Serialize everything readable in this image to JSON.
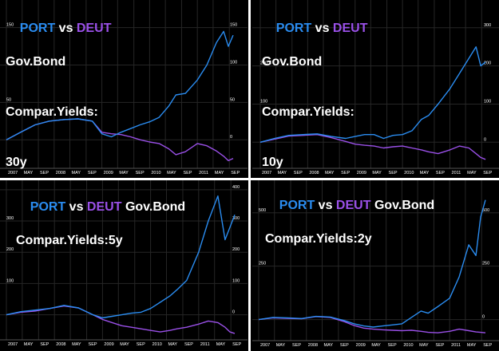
{
  "colors": {
    "background": "#000000",
    "port": "#2a8cf0",
    "deut": "#9a50e8",
    "grid": "#262626",
    "text": "#ffffff"
  },
  "chart_data": [
    {
      "type": "line",
      "title": {
        "port": "PORT",
        "vs": " vs ",
        "deut": "DEUT",
        "lines": [
          "Gov.Bond",
          "Compar.Yields:",
          "30y"
        ]
      },
      "xlabels": [
        "2007",
        "MAY",
        "SEP",
        "2008",
        "MAY",
        "SEP",
        "2009",
        "MAY",
        "SEP",
        "2010",
        "MAY",
        "SEP",
        "2011",
        "MAY",
        "SEP"
      ],
      "right_axis_labels": [
        "150",
        "100",
        "50",
        "0"
      ],
      "left_axis_labels": [
        "150",
        "50"
      ],
      "series": [
        {
          "color": "port",
          "x": [
            2007.0,
            2007.3,
            2007.6,
            2007.9,
            2008.2,
            2008.5,
            2008.8,
            2009.0,
            2009.2,
            2009.4,
            2009.6,
            2009.8,
            2010.0,
            2010.2,
            2010.4,
            2010.55,
            2010.75,
            2011.0,
            2011.2,
            2011.4,
            2011.55,
            2011.65,
            2011.75
          ],
          "y": [
            0,
            10,
            20,
            25,
            27,
            28,
            25,
            8,
            4,
            10,
            15,
            20,
            24,
            30,
            45,
            60,
            62,
            80,
            100,
            130,
            145,
            125,
            140
          ]
        },
        {
          "color": "deut",
          "x": [
            2007.0,
            2007.3,
            2007.6,
            2007.9,
            2008.2,
            2008.5,
            2008.8,
            2009.0,
            2009.2,
            2009.4,
            2009.6,
            2009.8,
            2010.0,
            2010.2,
            2010.4,
            2010.55,
            2010.75,
            2011.0,
            2011.2,
            2011.4,
            2011.55,
            2011.65,
            2011.75
          ],
          "y": [
            0,
            10,
            20,
            25,
            27,
            28,
            25,
            10,
            8,
            7,
            4,
            0,
            -3,
            -5,
            -12,
            -20,
            -16,
            -5,
            -8,
            -15,
            -22,
            -28,
            -25
          ]
        }
      ]
    },
    {
      "type": "line",
      "title": {
        "port": "PORT",
        "vs": " vs ",
        "deut": "DEUT",
        "lines": [
          "Gov.Bond",
          "Compar.Yields:",
          "10y"
        ]
      },
      "xlabels": [
        "2007",
        "MAY",
        "SEP",
        "2008",
        "MAY",
        "SEP",
        "2009",
        "MAY",
        "SEP",
        "2010",
        "MAY",
        "SEP",
        "2011",
        "MAY",
        "SEP"
      ],
      "right_axis_labels": [
        "300",
        "200",
        "100",
        "0"
      ],
      "left_axis_labels": [
        "200",
        "100"
      ],
      "series": [
        {
          "color": "port",
          "x": [
            2007.0,
            2007.3,
            2007.6,
            2007.9,
            2008.2,
            2008.5,
            2008.8,
            2009.0,
            2009.2,
            2009.4,
            2009.6,
            2009.8,
            2010.0,
            2010.2,
            2010.4,
            2010.55,
            2010.75,
            2011.0,
            2011.2,
            2011.4,
            2011.55,
            2011.65,
            2011.75
          ],
          "y": [
            0,
            10,
            18,
            20,
            22,
            15,
            10,
            15,
            20,
            20,
            10,
            18,
            20,
            30,
            60,
            70,
            100,
            140,
            180,
            220,
            250,
            200,
            210
          ]
        },
        {
          "color": "deut",
          "x": [
            2007.0,
            2007.3,
            2007.6,
            2007.9,
            2008.2,
            2008.5,
            2008.8,
            2009.0,
            2009.2,
            2009.4,
            2009.6,
            2009.8,
            2010.0,
            2010.2,
            2010.4,
            2010.55,
            2010.75,
            2011.0,
            2011.2,
            2011.4,
            2011.55,
            2011.65,
            2011.75
          ],
          "y": [
            0,
            8,
            16,
            18,
            20,
            12,
            2,
            -5,
            -8,
            -10,
            -15,
            -12,
            -10,
            -15,
            -20,
            -25,
            -30,
            -20,
            -10,
            -15,
            -30,
            -40,
            -45
          ]
        }
      ]
    },
    {
      "type": "line",
      "title": {
        "port": "PORT",
        "vs": " vs ",
        "deut": "DEUT",
        "lines": [
          "Gov.Bond",
          "Compar.Yields:5y"
        ]
      },
      "xlabels": [
        "2007",
        "MAY",
        "SEP",
        "2008",
        "MAY",
        "SEP",
        "2009",
        "MAY",
        "SEP",
        "2010",
        "MAY",
        "SEP",
        "2011",
        "MAY",
        "SEP"
      ],
      "right_axis_labels": [
        "400",
        "300",
        "200",
        "100",
        "0"
      ],
      "left_axis_labels": [
        "300",
        "200",
        "100"
      ],
      "series": [
        {
          "color": "port",
          "x": [
            2007.0,
            2007.3,
            2007.6,
            2007.9,
            2008.2,
            2008.5,
            2008.8,
            2009.0,
            2009.2,
            2009.4,
            2009.6,
            2009.8,
            2010.0,
            2010.2,
            2010.4,
            2010.55,
            2010.75,
            2011.0,
            2011.2,
            2011.4,
            2011.55,
            2011.65,
            2011.75
          ],
          "y": [
            0,
            10,
            15,
            20,
            30,
            22,
            0,
            -10,
            -5,
            0,
            5,
            8,
            20,
            40,
            60,
            80,
            110,
            200,
            300,
            380,
            240,
            280,
            320
          ]
        },
        {
          "color": "deut",
          "x": [
            2007.0,
            2007.3,
            2007.6,
            2007.9,
            2008.2,
            2008.5,
            2008.8,
            2009.0,
            2009.2,
            2009.4,
            2009.6,
            2009.8,
            2010.0,
            2010.2,
            2010.4,
            2010.55,
            2010.75,
            2011.0,
            2011.2,
            2011.4,
            2011.55,
            2011.65,
            2011.75
          ],
          "y": [
            0,
            8,
            12,
            20,
            28,
            22,
            0,
            -15,
            -25,
            -35,
            -40,
            -45,
            -50,
            -55,
            -50,
            -45,
            -40,
            -30,
            -20,
            -25,
            -40,
            -55,
            -60
          ]
        }
      ]
    },
    {
      "type": "line",
      "title": {
        "port": "PORT",
        "vs": " vs ",
        "deut": "DEUT",
        "lines": [
          "Gov.Bond",
          "Compar.Yields:2y"
        ]
      },
      "xlabels": [
        "2007",
        "MAY",
        "SEP",
        "2008",
        "MAY",
        "SEP",
        "2009",
        "MAY",
        "SEP",
        "2010",
        "MAY",
        "SEP",
        "2011",
        "MAY",
        "SEP"
      ],
      "right_axis_labels": [
        "500",
        "250",
        "0"
      ],
      "left_axis_labels": [
        "500",
        "250"
      ],
      "series": [
        {
          "color": "port",
          "x": [
            2007.0,
            2007.3,
            2007.6,
            2007.9,
            2008.2,
            2008.5,
            2008.8,
            2009.0,
            2009.2,
            2009.4,
            2009.6,
            2009.8,
            2010.0,
            2010.2,
            2010.4,
            2010.55,
            2010.75,
            2011.0,
            2011.2,
            2011.4,
            2011.55,
            2011.65,
            2011.75
          ],
          "y": [
            0,
            10,
            8,
            5,
            15,
            12,
            -5,
            -20,
            -30,
            -35,
            -30,
            -25,
            -20,
            10,
            40,
            30,
            60,
            100,
            200,
            350,
            300,
            480,
            560
          ]
        },
        {
          "color": "deut",
          "x": [
            2007.0,
            2007.3,
            2007.6,
            2007.9,
            2008.2,
            2008.5,
            2008.8,
            2009.0,
            2009.2,
            2009.4,
            2009.6,
            2009.8,
            2010.0,
            2010.2,
            2010.4,
            2010.55,
            2010.75,
            2011.0,
            2011.2,
            2011.4,
            2011.55,
            2011.65,
            2011.75
          ],
          "y": [
            0,
            8,
            6,
            4,
            14,
            10,
            -10,
            -28,
            -40,
            -45,
            -48,
            -50,
            -52,
            -50,
            -55,
            -60,
            -62,
            -55,
            -45,
            -52,
            -58,
            -60,
            -62
          ]
        }
      ]
    }
  ]
}
